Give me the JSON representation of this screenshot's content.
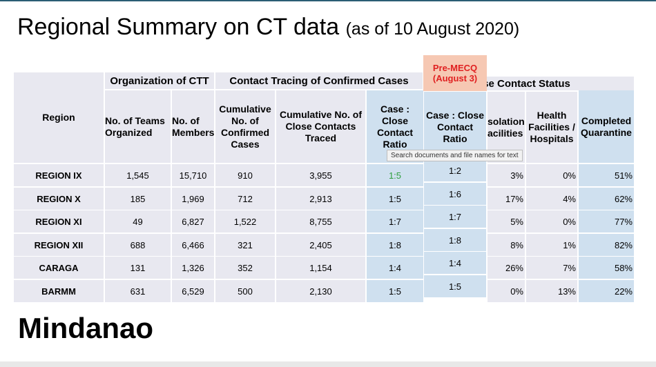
{
  "title": {
    "main": "Regional Summary on CT data",
    "sub": "(as of 10 August 2020)"
  },
  "footer": "Mindanao",
  "premecq": {
    "line1": "Pre-MECQ",
    "line2": "(August 3)"
  },
  "tooltip": "Search documents and file names for text",
  "groups": {
    "org": "Organization of CTT",
    "contact": "Contact Tracing of Confirmed Cases",
    "status": "ose Contact Status"
  },
  "headers": {
    "region": "Region",
    "teams": "No. of Teams Organized",
    "members": "No. of Members",
    "confirmed": "Cumulative No. of Confirmed Cases",
    "contacts": "Cumulative No. of Close Contacts Traced",
    "ratio": "Case : Close Contact Ratio",
    "pre_ratio": "Case : Close Contact Ratio",
    "isolation": "solation acilities",
    "health": "Health Facilities / Hospitals",
    "completed": "Completed Quarantine"
  },
  "rows": [
    {
      "region": "REGION IX",
      "teams": "1,545",
      "members": "15,710",
      "confirmed": "910",
      "contacts": "3,955",
      "ratio": "1:5",
      "pre": "1:2",
      "isolation": "3%",
      "health": "0%",
      "completed": "51%"
    },
    {
      "region": "REGION X",
      "teams": "185",
      "members": "1,969",
      "confirmed": "712",
      "contacts": "2,913",
      "ratio": "1:5",
      "pre": "1:6",
      "isolation": "17%",
      "health": "4%",
      "completed": "62%"
    },
    {
      "region": "REGION XI",
      "teams": "49",
      "members": "6,827",
      "confirmed": "1,522",
      "contacts": "8,755",
      "ratio": "1:7",
      "pre": "1:7",
      "isolation": "5%",
      "health": "0%",
      "completed": "77%"
    },
    {
      "region": "REGION XII",
      "teams": "688",
      "members": "6,466",
      "confirmed": "321",
      "contacts": "2,405",
      "ratio": "1:8",
      "pre": "1:8",
      "isolation": "8%",
      "health": "1%",
      "completed": "82%"
    },
    {
      "region": "CARAGA",
      "teams": "131",
      "members": "1,326",
      "confirmed": "352",
      "contacts": "1,154",
      "ratio": "1:4",
      "pre": "1:4",
      "isolation": "26%",
      "health": "7%",
      "completed": "58%"
    },
    {
      "region": "BARMM",
      "teams": "631",
      "members": "6,529",
      "confirmed": "500",
      "contacts": "2,130",
      "ratio": "1:5",
      "pre": "1:5",
      "isolation": "0%",
      "health": "13%",
      "completed": "22%"
    }
  ],
  "colors": {
    "cell": "#e8e8f0",
    "highlight": "#cfe0ef",
    "premecq_bg": "#f6c8b3",
    "premecq_text": "#e02020",
    "green": "#2f9e3e"
  }
}
